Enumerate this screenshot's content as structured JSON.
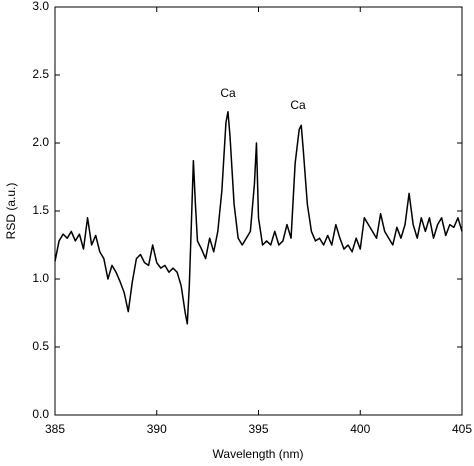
{
  "chart_data": {
    "type": "line",
    "x_label": "Wavelength (nm)",
    "y_label": "RSD (a.u.)",
    "annotations": [
      "Ca",
      "Ca"
    ],
    "xlim": [
      385,
      405
    ],
    "xticks": [
      385,
      390,
      395,
      400,
      405
    ],
    "ylim": [
      0,
      3
    ],
    "yticks": [
      {
        "value": 0,
        "label": "0.0"
      },
      0.5,
      {
        "value": 1,
        "label": "1.0"
      },
      1.5,
      {
        "value": 2,
        "label": "2.0"
      },
      2.5,
      {
        "value": 3,
        "label": "3.0"
      }
    ],
    "x": [
      385.0,
      385.2,
      385.4,
      385.6,
      385.8,
      386.0,
      386.2,
      386.4,
      386.6,
      386.8,
      387.0,
      387.2,
      387.4,
      387.6,
      387.8,
      388.0,
      388.2,
      388.4,
      388.6,
      388.8,
      389.0,
      389.2,
      389.4,
      389.6,
      389.8,
      390.0,
      390.2,
      390.4,
      390.6,
      390.8,
      391.0,
      391.2,
      391.4,
      391.5,
      391.6,
      391.7,
      391.8,
      391.9,
      392.0,
      392.2,
      392.4,
      392.6,
      392.8,
      393.0,
      393.2,
      393.4,
      393.5,
      393.6,
      393.8,
      394.0,
      394.2,
      394.4,
      394.6,
      394.8,
      394.9,
      395.0,
      395.2,
      395.4,
      395.6,
      395.8,
      396.0,
      396.2,
      396.4,
      396.6,
      396.8,
      397.0,
      397.1,
      397.2,
      397.4,
      397.6,
      397.8,
      398.0,
      398.2,
      398.4,
      398.6,
      398.8,
      399.0,
      399.2,
      399.4,
      399.6,
      399.8,
      400.0,
      400.2,
      400.4,
      400.6,
      400.8,
      401.0,
      401.2,
      401.4,
      401.6,
      401.8,
      402.0,
      402.2,
      402.4,
      402.6,
      402.8,
      403.0,
      403.2,
      403.4,
      403.6,
      403.8,
      404.0,
      404.2,
      404.4,
      404.6,
      404.8,
      405.0
    ],
    "series": [
      {
        "color": "#000000",
        "values": [
          1.13,
          1.28,
          1.33,
          1.3,
          1.35,
          1.28,
          1.33,
          1.22,
          1.45,
          1.25,
          1.32,
          1.2,
          1.15,
          1.0,
          1.1,
          1.05,
          0.98,
          0.9,
          0.76,
          0.98,
          1.15,
          1.18,
          1.12,
          1.1,
          1.25,
          1.12,
          1.08,
          1.1,
          1.05,
          1.08,
          1.05,
          0.95,
          0.75,
          0.67,
          0.95,
          1.4,
          1.87,
          1.55,
          1.28,
          1.22,
          1.15,
          1.3,
          1.2,
          1.35,
          1.65,
          2.15,
          2.23,
          2.05,
          1.55,
          1.3,
          1.25,
          1.3,
          1.35,
          1.7,
          2.0,
          1.45,
          1.25,
          1.28,
          1.25,
          1.35,
          1.25,
          1.28,
          1.4,
          1.3,
          1.85,
          2.1,
          2.13,
          1.95,
          1.55,
          1.35,
          1.28,
          1.3,
          1.25,
          1.32,
          1.25,
          1.4,
          1.3,
          1.22,
          1.25,
          1.2,
          1.3,
          1.22,
          1.45,
          1.4,
          1.35,
          1.3,
          1.48,
          1.35,
          1.3,
          1.25,
          1.38,
          1.3,
          1.4,
          1.63,
          1.4,
          1.3,
          1.45,
          1.35,
          1.45,
          1.3,
          1.4,
          1.45,
          1.32,
          1.4,
          1.38,
          1.45,
          1.35
        ]
      }
    ]
  }
}
